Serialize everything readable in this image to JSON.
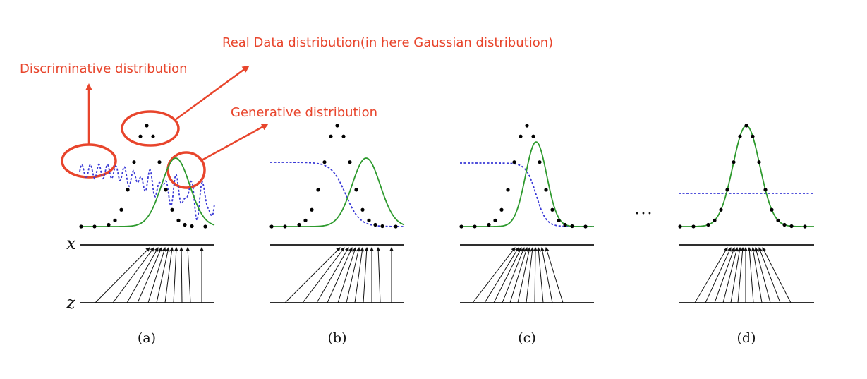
{
  "annotations": {
    "real": "Real Data distribution(in here Gaussian distribution)",
    "discriminative": "Discriminative distribution",
    "generative": "Generative distribution"
  },
  "axis_labels": {
    "x": "x",
    "z": "z"
  },
  "panel_labels": [
    "(a)",
    "(b)",
    "(c)",
    "(d)"
  ],
  "ellipsis": "···",
  "colors": {
    "annotation": "#e8452c",
    "data_points": "#000000",
    "generative": "#2e9a2e",
    "discriminative": "#3a3ad6",
    "axis": "#111111"
  }
}
